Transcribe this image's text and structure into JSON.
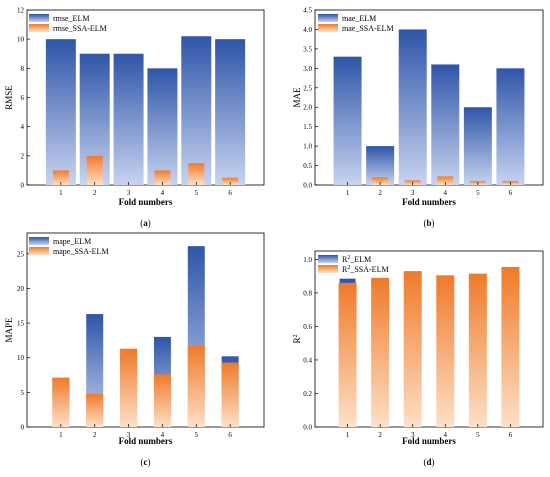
{
  "chart_data": [
    {
      "type": "bar",
      "panel_label": "(a)",
      "xlabel": "Fold numbers",
      "ylabel": "RMSE",
      "categories": [
        "1",
        "2",
        "3",
        "4",
        "5",
        "6"
      ],
      "ylim": [
        0,
        12
      ],
      "yticks": [
        "0",
        "2",
        "4",
        "6",
        "8",
        "10",
        "12"
      ],
      "series": [
        {
          "name": "rmse_ELM",
          "values": [
            10,
            9,
            9,
            8,
            10.2,
            10
          ]
        },
        {
          "name": "rmse_SSA-ELM",
          "values": [
            1,
            2,
            0,
            1,
            1.5,
            0.5
          ]
        }
      ],
      "legend": "top-left"
    },
    {
      "type": "bar",
      "panel_label": "(b)",
      "xlabel": "Fold numbers",
      "ylabel": "MAE",
      "categories": [
        "1",
        "2",
        "3",
        "4",
        "5",
        "6"
      ],
      "ylim": [
        0,
        4.5
      ],
      "yticks": [
        "0.0",
        "0.5",
        "1.0",
        "1.5",
        "2.0",
        "2.5",
        "3.0",
        "3.5",
        "4.0",
        "4.5"
      ],
      "series": [
        {
          "name": "mae_ELM",
          "values": [
            3.3,
            1.0,
            4.0,
            3.1,
            2.0,
            3.0
          ]
        },
        {
          "name": "mae_SSA-ELM",
          "values": [
            0.0,
            0.2,
            0.12,
            0.22,
            0.1,
            0.1
          ]
        }
      ],
      "legend": "top-left"
    },
    {
      "type": "bar",
      "panel_label": "(c)",
      "xlabel": "Fold numbers",
      "ylabel": "MAPE",
      "categories": [
        "1",
        "2",
        "3",
        "4",
        "5",
        "6"
      ],
      "ylim": [
        0,
        28
      ],
      "yticks": [
        "0",
        "5",
        "10",
        "15",
        "20",
        "25"
      ],
      "series": [
        {
          "name": "mape_ELM",
          "values": [
            7.1,
            16.3,
            10.3,
            13.0,
            26.1,
            10.2
          ]
        },
        {
          "name": "mape_SSA-ELM",
          "values": [
            7.1,
            4.8,
            11.3,
            7.6,
            11.8,
            9.3
          ]
        }
      ],
      "legend": "top-left"
    },
    {
      "type": "bar",
      "panel_label": "(d)",
      "xlabel": "Fold numbers",
      "ylabel": "R",
      "ylabel_sup": "2",
      "categories": [
        "1",
        "2",
        "3",
        "4",
        "5",
        "6"
      ],
      "ylim": [
        0,
        1.05
      ],
      "yticks": [
        "0.0",
        "0.2",
        "0.4",
        "0.6",
        "0.8",
        "1.0"
      ],
      "series": [
        {
          "name": "R",
          "name_sup": "2",
          "name_suffix": "_ELM",
          "values": [
            0.885,
            0.775,
            0.845,
            0.885,
            0.755,
            0.84
          ]
        },
        {
          "name": "R",
          "name_sup": "2",
          "name_suffix": "_SSA-ELM",
          "values": [
            0.86,
            0.89,
            0.93,
            0.905,
            0.915,
            0.955
          ]
        }
      ],
      "legend": "top-left"
    }
  ],
  "colors": {
    "elm_top": "#2f55a8",
    "elm_bottom": "#c7d3f0",
    "ssa_top": "#f07a2a",
    "ssa_bottom": "#fde0c8"
  }
}
